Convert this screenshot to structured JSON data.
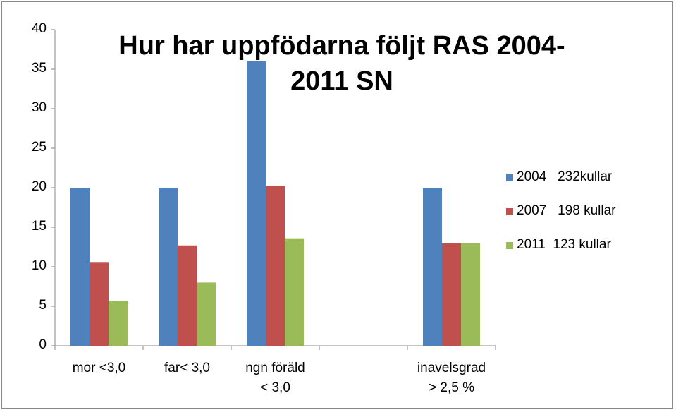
{
  "chart_data": {
    "type": "bar",
    "title": "Hur har uppfödarna följt RAS 2004-\n2011 SN",
    "categories": [
      "mor <3,0",
      "far< 3,0",
      "ngn föräld\n< 3,0",
      null,
      "inavelsgrad\n> 2,5 %"
    ],
    "series": [
      {
        "name": "2004   232kullar",
        "color": "#4f81bd",
        "values": [
          20,
          20,
          36,
          null,
          20
        ]
      },
      {
        "name": "2007   198 kullar",
        "color": "#c0504d",
        "values": [
          10.6,
          12.7,
          20.2,
          null,
          13
        ]
      },
      {
        "name": "2011  123 kullar",
        "color": "#9bbb59",
        "values": [
          5.7,
          8,
          13.6,
          null,
          13
        ]
      }
    ],
    "ylim": [
      0,
      40
    ],
    "yticks": [
      0,
      5,
      10,
      15,
      20,
      25,
      30,
      35,
      40
    ],
    "grid": false,
    "legend": "right"
  }
}
